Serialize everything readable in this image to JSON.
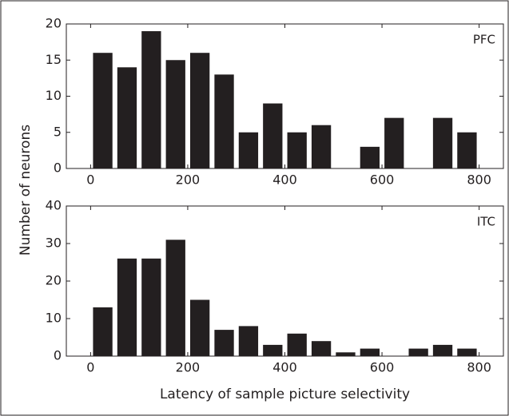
{
  "chart_data": [
    {
      "type": "histogram",
      "label": "PFC",
      "ylabel": "Number of neurons",
      "bins": [
        0,
        50,
        100,
        150,
        200,
        250,
        300,
        350,
        400,
        450,
        500,
        550,
        600,
        650,
        700,
        750,
        800
      ],
      "counts": [
        16,
        14,
        19,
        15,
        16,
        13,
        5,
        9,
        5,
        6,
        0,
        3,
        7,
        0,
        7,
        5
      ],
      "color": "#231f20",
      "xlim": [
        -50,
        850
      ],
      "xticks": [
        0,
        200,
        400,
        600,
        800
      ],
      "ylim": [
        0,
        20
      ],
      "yticks": [
        0,
        5,
        10,
        15,
        20
      ]
    },
    {
      "type": "histogram",
      "label": "ITC",
      "xlabel": "Latency of sample picture selectivity",
      "bins": [
        0,
        50,
        100,
        150,
        200,
        250,
        300,
        350,
        400,
        450,
        500,
        550,
        600,
        650,
        700,
        750,
        800
      ],
      "counts": [
        13,
        26,
        26,
        31,
        15,
        7,
        8,
        3,
        6,
        4,
        1,
        2,
        0,
        2,
        3,
        2
      ],
      "color": "#231f20",
      "xlim": [
        -50,
        850
      ],
      "xticks": [
        0,
        200,
        400,
        600,
        800
      ],
      "ylim": [
        0,
        40
      ],
      "yticks": [
        0,
        10,
        20,
        30,
        40
      ]
    }
  ]
}
